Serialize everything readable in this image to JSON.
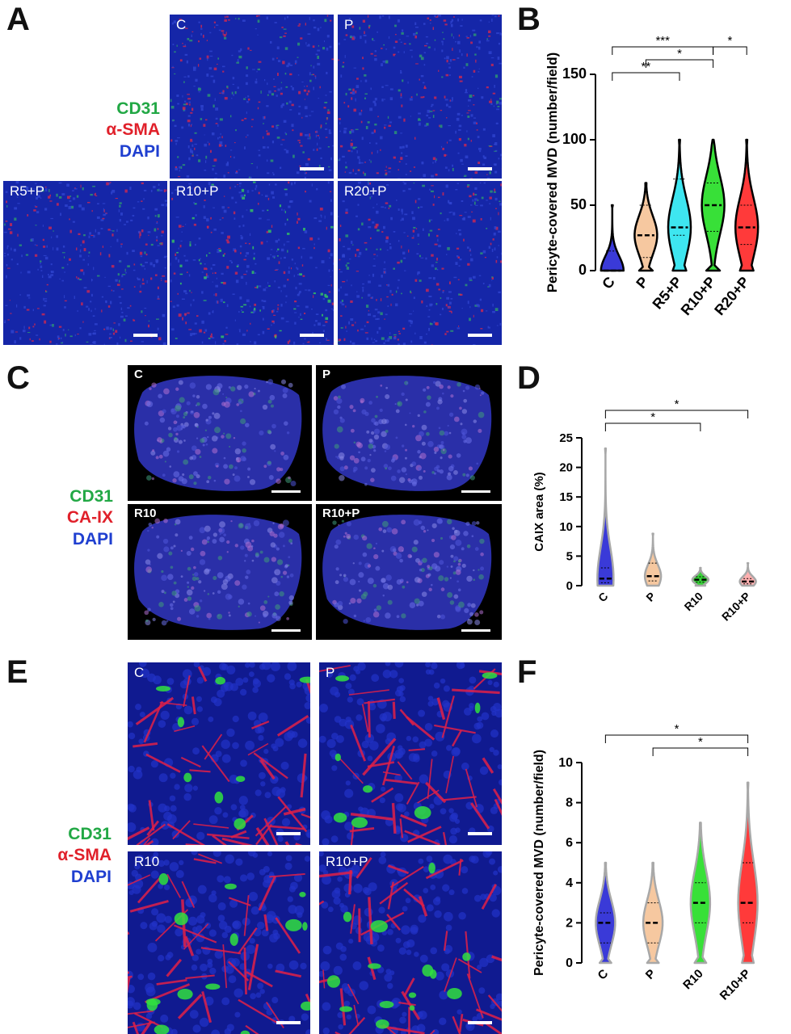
{
  "panel_letters": {
    "a": "A",
    "b": "B",
    "c": "C",
    "d": "D",
    "e": "E",
    "f": "F"
  },
  "legend_a": {
    "l1": "CD31",
    "l2": "α-SMA",
    "l3": "DAPI",
    "c1": "#22a845",
    "c2": "#e0202a",
    "c3": "#1f3fd0"
  },
  "legend_c": {
    "l1": "CD31",
    "l2": "CA-IX",
    "l3": "DAPI",
    "c1": "#22a845",
    "c2": "#e0202a",
    "c3": "#1f3fd0"
  },
  "legend_e": {
    "l1": "CD31",
    "l2": "α-SMA",
    "l3": "DAPI",
    "c1": "#22a845",
    "c2": "#e0202a",
    "c3": "#1f3fd0"
  },
  "images_a": [
    "C",
    "P",
    "R5+P",
    "R10+P",
    "R20+P"
  ],
  "images_c": [
    "C",
    "P",
    "R10",
    "R10+P"
  ],
  "images_e": [
    "C",
    "P",
    "R10",
    "R10+P"
  ],
  "chart_data": [
    {
      "panel": "B",
      "type": "violin",
      "ylabel": "Pericyte-covered MVD (number/field)",
      "ylim": [
        0,
        150
      ],
      "yticks": [
        0,
        50,
        100,
        150
      ],
      "categories": [
        "C",
        "P",
        "R5+P",
        "R10+P",
        "R20+P"
      ],
      "colors": [
        "#3a3ad8",
        "#f6c8a0",
        "#3ee6f0",
        "#38e038",
        "#ff3a3a"
      ],
      "outline": "#000000",
      "series": [
        {
          "min": 0,
          "max": 50,
          "q1": 0,
          "median": 0,
          "q3": 15
        },
        {
          "min": 0,
          "max": 67,
          "q1": 10,
          "median": 27,
          "q3": 50
        },
        {
          "min": 0,
          "max": 100,
          "q1": 27,
          "median": 33,
          "q3": 70
        },
        {
          "min": 0,
          "max": 100,
          "q1": 30,
          "median": 50,
          "q3": 67
        },
        {
          "min": 0,
          "max": 100,
          "q1": 20,
          "median": 33,
          "q3": 50
        }
      ],
      "significance": [
        {
          "from": 0,
          "to": 3,
          "label": "***"
        },
        {
          "from": 3,
          "to": 4,
          "label": "*"
        },
        {
          "from": 1,
          "to": 3,
          "label": "*"
        },
        {
          "from": 0,
          "to": 2,
          "label": "**"
        }
      ]
    },
    {
      "panel": "D",
      "type": "violin",
      "ylabel": "CAIX area (%)",
      "ylim": [
        0,
        25
      ],
      "yticks": [
        0,
        5,
        10,
        15,
        20,
        25
      ],
      "categories": [
        "C",
        "P",
        "R10",
        "R10+P"
      ],
      "colors": [
        "#3a3ad8",
        "#f6c8a0",
        "#38d038",
        "#ffb0b0"
      ],
      "outline": "#a8a8a8",
      "series": [
        {
          "min": 0,
          "max": 23.2,
          "q1": 0.5,
          "median": 1.2,
          "q3": 3
        },
        {
          "min": 0,
          "max": 8.8,
          "q1": 0.8,
          "median": 1.6,
          "q3": 3.8
        },
        {
          "min": 0,
          "max": 3.0,
          "q1": 0.6,
          "median": 1.0,
          "q3": 1.5
        },
        {
          "min": 0,
          "max": 3.8,
          "q1": 0.3,
          "median": 0.7,
          "q3": 1.2
        }
      ],
      "significance": [
        {
          "from": 0,
          "to": 3,
          "label": "*"
        },
        {
          "from": 0,
          "to": 2,
          "label": "*"
        }
      ]
    },
    {
      "panel": "F",
      "type": "violin",
      "ylabel": "Pericyte-covered MVD (number/field)",
      "ylim": [
        0,
        10
      ],
      "yticks": [
        0,
        2,
        4,
        6,
        8,
        10
      ],
      "categories": [
        "C",
        "P",
        "R10",
        "R10+P"
      ],
      "colors": [
        "#3a3ad8",
        "#f6c8a0",
        "#38e038",
        "#ff3a3a"
      ],
      "outline": "#a8a8a8",
      "series": [
        {
          "min": 0,
          "max": 5,
          "q1": 1,
          "median": 2,
          "q3": 2.5
        },
        {
          "min": 0,
          "max": 5,
          "q1": 1,
          "median": 2,
          "q3": 3
        },
        {
          "min": 0,
          "max": 7,
          "q1": 2,
          "median": 3,
          "q3": 4
        },
        {
          "min": 0,
          "max": 9,
          "q1": 2,
          "median": 3,
          "q3": 5
        }
      ],
      "significance": [
        {
          "from": 0,
          "to": 3,
          "label": "*"
        },
        {
          "from": 1,
          "to": 3,
          "label": "*"
        }
      ]
    }
  ]
}
